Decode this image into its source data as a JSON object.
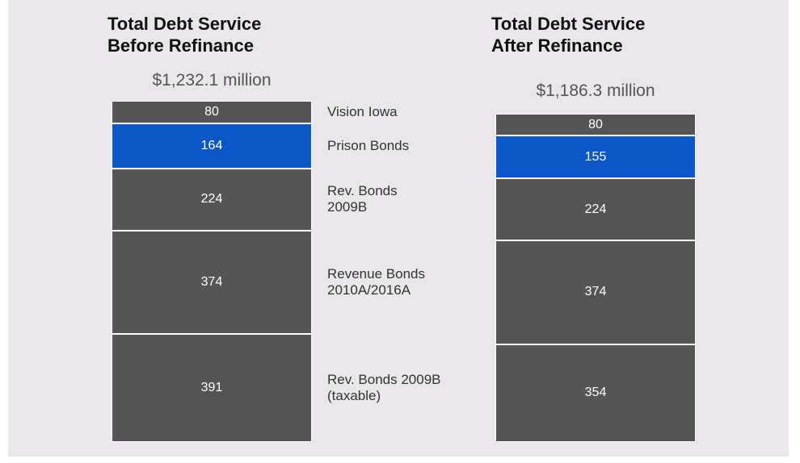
{
  "chart_data": {
    "type": "stacked-bar",
    "categories": [
      "Total Debt Service\nBefore Refinance",
      "Total Debt Service\nAfter Refinance"
    ],
    "totals": {
      "values": [
        1232.1,
        1186.3
      ],
      "value_labels": [
        "$1,232.1 million",
        "$1,186.3 million"
      ]
    },
    "series": [
      {
        "name": "Vision Iowa",
        "color": "#555555",
        "values": [
          80,
          80
        ]
      },
      {
        "name": "Prison Bonds",
        "color": "#0b57c9",
        "values": [
          164,
          155
        ]
      },
      {
        "name": "Rev. Bonds\n2009B",
        "color": "#555555",
        "values": [
          224,
          224
        ]
      },
      {
        "name": "Revenue Bonds\n2010A/2016A",
        "color": "#555555",
        "values": [
          374,
          374
        ]
      },
      {
        "name": "Rev. Bonds 2009B\n(taxable)",
        "color": "#555555",
        "values": [
          391,
          354
        ]
      }
    ]
  }
}
